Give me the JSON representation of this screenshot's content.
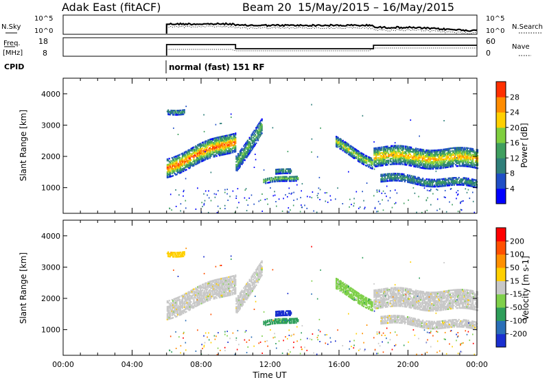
{
  "header": {
    "station": "Adak East (fitACF)",
    "beam": "Beam 20",
    "date_range": "15/May/2015 – 16/May/2015"
  },
  "params": {
    "nsky_label": "N.Sky",
    "nsearch_label": "N.Search",
    "freq_label_top": "Freq.",
    "freq_label_bottom": "[MHz]",
    "nave_label": "Nave",
    "cpid_label": "CPID",
    "cpid_value": "normal (fast) 151 RF",
    "noise_ticks_left": [
      "10^5",
      "10^0"
    ],
    "noise_ticks_right": [
      "10^5",
      "10^0"
    ],
    "freq_ticks": [
      "18",
      "8"
    ],
    "nave_ticks": [
      "60",
      "0"
    ]
  },
  "chart_data": [
    {
      "type": "heatmap",
      "name": "power",
      "ylabel": "Slant Range [km]",
      "yticks": [
        "4000",
        "3000",
        "2000",
        "1000"
      ],
      "ylim": [
        180,
        4500
      ],
      "xlim": [
        0,
        24
      ],
      "colorbar_label": "Power [dB]",
      "colorbar_ticks": [
        "28",
        "24",
        "20",
        "16",
        "12",
        "8",
        "4"
      ],
      "colorbar_range": [
        0,
        32
      ],
      "colorbar_colors": [
        "#0000ff",
        "#1f4ec6",
        "#2f7f7a",
        "#3f9f5f",
        "#7fcf3f",
        "#ffd000",
        "#ff8c00",
        "#ff3000"
      ]
    },
    {
      "type": "heatmap",
      "name": "velocity",
      "ylabel": "Slant Range [km]",
      "yticks": [
        "4000",
        "3000",
        "2000",
        "1000"
      ],
      "ylim": [
        180,
        4500
      ],
      "xlim": [
        0,
        24
      ],
      "xticks": [
        "00:00",
        "04:00",
        "08:00",
        "12:00",
        "16:00",
        "20:00",
        "00:00"
      ],
      "xlabel": "Time UT",
      "colorbar_label": "Velocity [m s-1]",
      "colorbar_ticks": [
        "200",
        "100",
        "50",
        "15",
        "-15",
        "-50",
        "-100",
        "-200"
      ],
      "colorbar_colors": [
        "#1a2fd0",
        "#2a6fb8",
        "#2e9e5a",
        "#7fd04a",
        "#c8c8c8",
        "#ffd000",
        "#ff9000",
        "#ff5000",
        "#ff0000"
      ]
    }
  ]
}
